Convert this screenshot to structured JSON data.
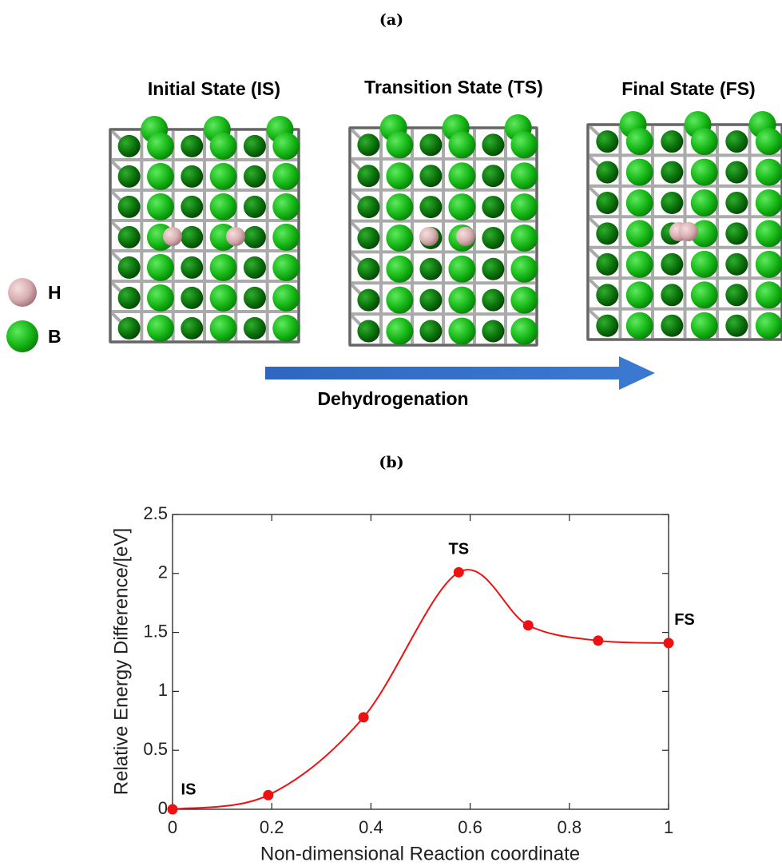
{
  "panel_a": {
    "label": "(a)",
    "states": [
      "Initial State (IS)",
      "Transition State (TS)",
      "Final State (FS)"
    ],
    "legend": [
      "H",
      "B"
    ],
    "arrow_label": "Dehydrogenation"
  },
  "chart_data": {
    "type": "line",
    "panel_label": "(b)",
    "x_label": "Non-dimensional Reaction coordinate",
    "y_label": "Relative Energy Difference/[eV]",
    "x": [
      0,
      0.193,
      0.385,
      0.577,
      0.717,
      0.858,
      1
    ],
    "values": [
      0,
      0.12,
      0.78,
      2.01,
      1.56,
      1.43,
      1.41
    ],
    "color": "#ee1111",
    "annotations": [
      "IS",
      "TS",
      "FS"
    ],
    "xlim": [
      0,
      1
    ],
    "xticks": [
      0,
      0.2,
      0.4,
      0.6,
      0.8,
      1
    ],
    "ylim": [
      0,
      2.5
    ],
    "yticks": [
      0,
      0.5,
      1,
      1.5,
      2,
      2.5
    ]
  }
}
